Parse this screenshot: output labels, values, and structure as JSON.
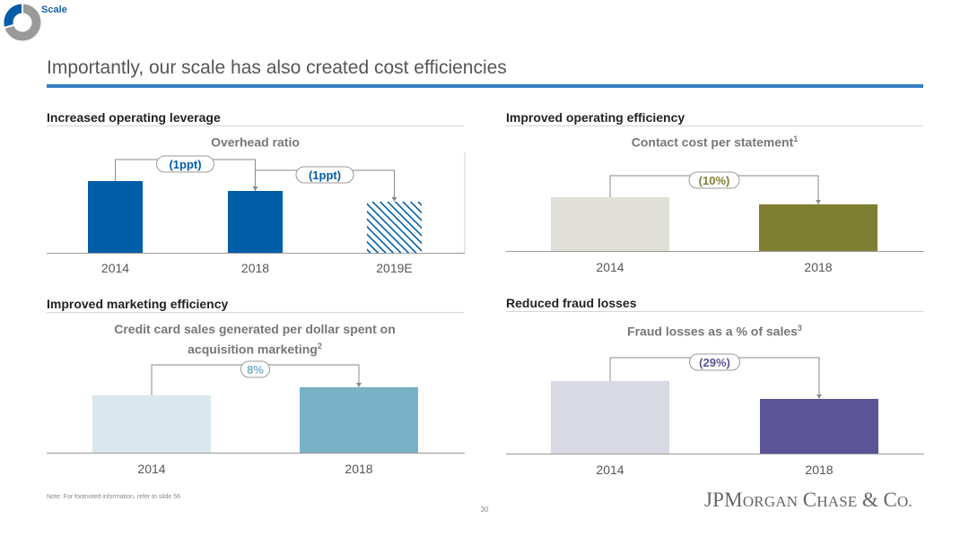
{
  "header": {
    "section_label": "Scale",
    "title": "Importantly, our scale has also created cost efficiencies"
  },
  "footer": {
    "note": "Note: For footnoted information, refer to slide 56",
    "page_number": "30",
    "company": "JPMorgan Chase & Co."
  },
  "colors": {
    "accent_blue": "#005da8",
    "olive": "#7f7f32",
    "light_gray": "#e0dfd8",
    "light_blue": "#dae7ec",
    "teal": "#79b2c6",
    "lavender_gray": "#d8d9e2",
    "purple": "#5b5598"
  },
  "panels": [
    {
      "id": "operating-leverage",
      "heading": "Increased operating leverage",
      "chart_title": "Overhead ratio",
      "chart_title_sup": ""
    },
    {
      "id": "operating-efficiency",
      "heading": "Improved operating efficiency",
      "chart_title": "Contact cost per statement",
      "chart_title_sup": "1"
    },
    {
      "id": "marketing-efficiency",
      "heading": "Improved marketing efficiency",
      "chart_title": "Credit card sales generated per dollar spent on acquisition marketing",
      "chart_title_sup": "2"
    },
    {
      "id": "fraud-losses",
      "heading": "Reduced fraud losses",
      "chart_title": "Fraud losses as a % of sales",
      "chart_title_sup": "3"
    }
  ],
  "chart_data": [
    {
      "type": "bar",
      "title": "Overhead ratio",
      "categories": [
        "2014",
        "2018",
        "2019E"
      ],
      "values": [
        80,
        69,
        57
      ],
      "estimated": [
        false,
        false,
        true
      ],
      "colors": [
        "#005da8",
        "#005da8",
        "#005da8"
      ],
      "annotations": [
        {
          "from": 0,
          "to": 1,
          "label": "(1ppt)",
          "color": "#005da8"
        },
        {
          "from": 1,
          "to": 2,
          "label": "(1ppt)",
          "color": "#005da8"
        }
      ]
    },
    {
      "type": "bar",
      "title": "Contact cost per statement",
      "categories": [
        "2014",
        "2018"
      ],
      "values": [
        60,
        52
      ],
      "colors": [
        "#e0dfd8",
        "#7f7f32"
      ],
      "annotations": [
        {
          "from": 0,
          "to": 1,
          "label": "(10%)",
          "color": "#7f7f32"
        }
      ]
    },
    {
      "type": "bar",
      "title": "Credit card sales generated per dollar spent on acquisition marketing",
      "categories": [
        "2014",
        "2018"
      ],
      "values": [
        64,
        73
      ],
      "colors": [
        "#dae7ec",
        "#79b2c6"
      ],
      "annotations": [
        {
          "from": 0,
          "to": 1,
          "label": "8%",
          "color": "#79b2c6"
        }
      ]
    },
    {
      "type": "bar",
      "title": "Fraud losses as a % of sales",
      "categories": [
        "2014",
        "2018"
      ],
      "values": [
        81,
        61
      ],
      "colors": [
        "#d8d9e2",
        "#5b5598"
      ],
      "annotations": [
        {
          "from": 0,
          "to": 1,
          "label": "(29%)",
          "color": "#5b5598"
        }
      ]
    }
  ]
}
